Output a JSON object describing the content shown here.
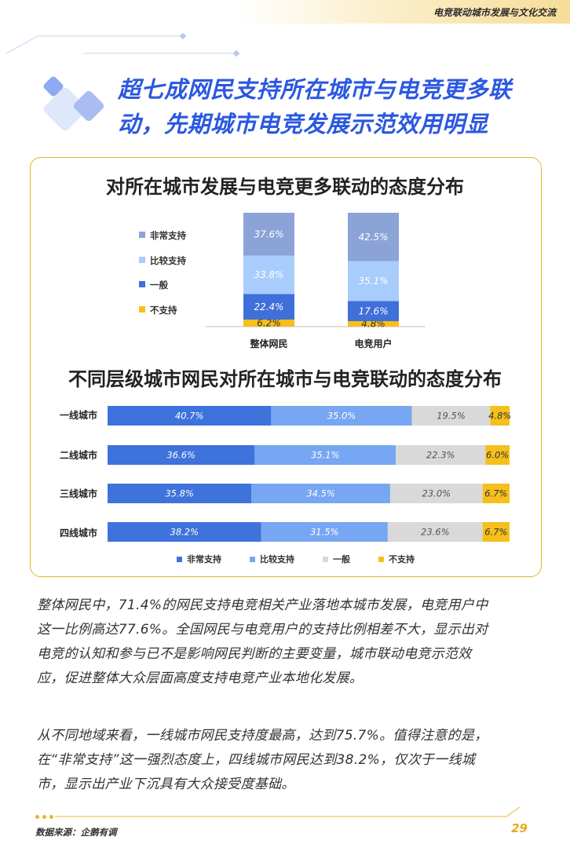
{
  "header": {
    "section_title": "电竞联动城市发展与文化交流"
  },
  "headline": {
    "line1": "超七成网民支持所在城市与电竞更多联",
    "line2": "动，先期城市电竞发展示范效用明显"
  },
  "colors": {
    "very_support": "#8ca3d8",
    "quite_support": "#a8ccfb",
    "neutral": "#3f6fd9",
    "not_support": "#f6bf1c",
    "h_very_support": "#3f73dc",
    "h_quite_support": "#77a6f2",
    "h_neutral": "#d9d9d9",
    "h_not_support": "#f6bf1c",
    "accent": "#2b58e0",
    "gold": "#e8b521"
  },
  "chart_data": [
    {
      "type": "bar",
      "stacked": true,
      "orientation": "vertical",
      "title": "对所在城市发展与电竞更多联动的态度分布",
      "categories": [
        "整体网民",
        "电竞用户"
      ],
      "series": [
        {
          "name": "非常支持",
          "values": [
            37.6,
            42.5
          ],
          "labels": [
            "37.6%",
            "42.5%"
          ]
        },
        {
          "name": "比较支持",
          "values": [
            33.8,
            35.1
          ],
          "labels": [
            "33.8%",
            "35.1%"
          ]
        },
        {
          "name": "一般",
          "values": [
            22.4,
            17.6
          ],
          "labels": [
            "22.4%",
            "17.6%"
          ]
        },
        {
          "name": "不支持",
          "values": [
            6.2,
            4.8
          ],
          "labels": [
            "6.2%",
            "4.8%"
          ]
        }
      ],
      "legend": [
        "非常支持",
        "比较支持",
        "一般",
        "不支持"
      ],
      "legend_position": "left",
      "ylim": [
        0,
        100
      ]
    },
    {
      "type": "bar",
      "stacked": true,
      "orientation": "horizontal",
      "title": "不同层级城市网民对所在城市与电竞联动的态度分布",
      "categories": [
        "一线城市",
        "二线城市",
        "三线城市",
        "四线城市"
      ],
      "series": [
        {
          "name": "非常支持",
          "values": [
            40.7,
            36.6,
            35.8,
            38.2
          ],
          "labels": [
            "40.7%",
            "36.6%",
            "35.8%",
            "38.2%"
          ]
        },
        {
          "name": "比较支持",
          "values": [
            35.0,
            35.1,
            34.5,
            31.5
          ],
          "labels": [
            "35.0%",
            "35.1%",
            "34.5%",
            "31.5%"
          ]
        },
        {
          "name": "一般",
          "values": [
            19.5,
            22.3,
            23.0,
            23.6
          ],
          "labels": [
            "19.5%",
            "22.3%",
            "23.0%",
            "23.6%"
          ]
        },
        {
          "name": "不支持",
          "values": [
            4.8,
            6.0,
            6.7,
            6.7
          ],
          "labels": [
            "4.8%",
            "6.0%",
            "6.7%",
            "6.7%"
          ]
        }
      ],
      "legend": [
        "非常支持",
        "比较支持",
        "一般",
        "不支持"
      ],
      "legend_position": "bottom",
      "xlim": [
        0,
        100
      ]
    }
  ],
  "body": {
    "p1_lines": [
      "整体网民中，71.4%的网民支持电竞相关产业落地本城市发展，电竞用户中",
      "这一比例高达77.6%。全国网民与电竞用户的支持比例相差不大，显示出对",
      "电竞的认知和参与已不是影响网民判断的主要变量，城市联动电竞示范效",
      "应，促进整体大众层面高度支持电竞产业本地化发展。"
    ],
    "p2_lines": [
      "从不同地域来看，一线城市网民支持度最高，达到75.7%。值得注意的是，",
      "在“非常支持”这一强烈态度上，四线城市网民达到38.2%，仅次于一线城",
      "市，显示出产业下沉具有大众接受度基础。"
    ]
  },
  "footer": {
    "source": "数据来源：企鹅有调",
    "page_number": "29"
  }
}
